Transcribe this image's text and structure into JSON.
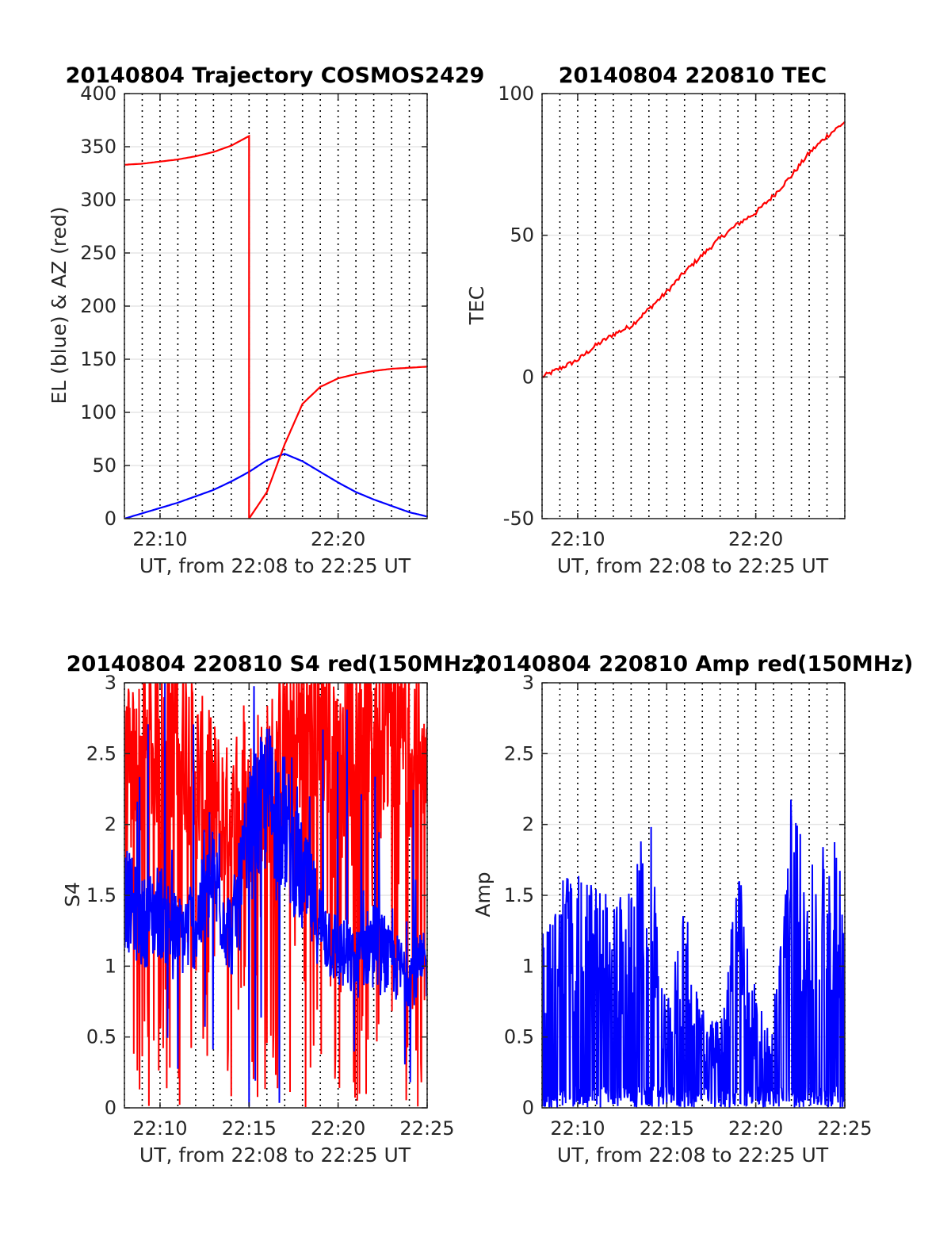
{
  "chart_data": [
    {
      "type": "line",
      "title": "20140804 Trajectory COSMOS2429",
      "xlabel": "UT, from 22:08 to 22:25 UT",
      "ylabel": "EL (blue) & AZ (red)",
      "xlim": [
        "22:08",
        "22:25"
      ],
      "xticks": [
        "22:10",
        "22:20"
      ],
      "ylim": [
        0,
        400
      ],
      "yticks": [
        "0",
        "50",
        "100",
        "150",
        "200",
        "250",
        "300",
        "350",
        "400"
      ],
      "grid": true,
      "series": [
        {
          "color": "#0000ff",
          "x": [
            "22:08",
            "22:09",
            "22:10",
            "22:11",
            "22:12",
            "22:13",
            "22:14",
            "22:15",
            "22:16",
            "22:17",
            "22:18",
            "22:19",
            "22:20",
            "22:21",
            "22:22",
            "22:23",
            "22:24",
            "22:25"
          ],
          "values": [
            0,
            5,
            10,
            15,
            21,
            27,
            35,
            44,
            55,
            61,
            54,
            44,
            34,
            25,
            18,
            12,
            6,
            2
          ]
        },
        {
          "color": "#ff0000",
          "x": [
            "22:08",
            "22:09",
            "22:10",
            "22:11",
            "22:12",
            "22:13",
            "22:14",
            "22:15",
            "22:15",
            "22:16",
            "22:17",
            "22:18",
            "22:19",
            "22:20",
            "22:21",
            "22:22",
            "22:23",
            "22:24",
            "22:25"
          ],
          "values": [
            333,
            334,
            336,
            338,
            341,
            345,
            351,
            360,
            0,
            25,
            70,
            108,
            124,
            132,
            136,
            139,
            141,
            142,
            143
          ]
        }
      ]
    },
    {
      "type": "line",
      "title": "20140804 220810 TEC",
      "xlabel": "UT, from 22:08 to 22:25 UT",
      "ylabel": "TEC",
      "xlim": [
        "22:08",
        "22:25"
      ],
      "xticks": [
        "22:10",
        "22:20"
      ],
      "ylim": [
        -50,
        100
      ],
      "yticks": [
        "-50",
        "0",
        "50",
        "100"
      ],
      "grid": true,
      "series": [
        {
          "color": "#ff0000",
          "x": [
            "22:08",
            "22:09",
            "22:10",
            "22:11",
            "22:12",
            "22:13",
            "22:14",
            "22:15",
            "22:16",
            "22:17",
            "22:18",
            "22:19",
            "22:20",
            "22:21",
            "22:22",
            "22:23",
            "22:24",
            "22:25"
          ],
          "values": [
            0,
            3,
            6,
            11,
            15,
            18,
            24,
            30,
            37,
            43,
            49,
            54,
            58,
            64,
            71,
            79,
            85,
            90
          ]
        }
      ]
    },
    {
      "type": "line",
      "title": "20140804 220810 S4 red(150MHz)",
      "xlabel": "UT, from 22:08 to 22:25 UT",
      "ylabel": "S4",
      "xlim": [
        "22:08",
        "22:25"
      ],
      "xticks": [
        "22:10",
        "22:15",
        "22:20",
        "22:25"
      ],
      "ylim": [
        0,
        3
      ],
      "yticks": [
        "0",
        "0.5",
        "1",
        "1.5",
        "2",
        "2.5",
        "3"
      ],
      "grid": true,
      "series": [
        {
          "color": "#ff0000",
          "x": [
            "22:08",
            "22:09",
            "22:10",
            "22:11",
            "22:12",
            "22:13",
            "22:14",
            "22:15",
            "22:16",
            "22:17",
            "22:18",
            "22:19",
            "22:20",
            "22:21",
            "22:22",
            "22:23",
            "22:24",
            "22:25"
          ],
          "values": [
            2.4,
            2.6,
            2.8,
            2.9,
            2.5,
            2.3,
            2.1,
            2.2,
            2.4,
            2.7,
            2.9,
            3.0,
            2.6,
            3.0,
            3.0,
            3.0,
            2.8,
            3.0
          ]
        },
        {
          "color": "#0000ff",
          "x": [
            "22:08",
            "22:09",
            "22:10",
            "22:11",
            "22:12",
            "22:13",
            "22:14",
            "22:15",
            "22:16",
            "22:17",
            "22:18",
            "22:19",
            "22:20",
            "22:21",
            "22:22",
            "22:23",
            "22:24",
            "22:25"
          ],
          "values": [
            1.5,
            1.3,
            1.4,
            1.2,
            1.3,
            1.6,
            1.2,
            1.9,
            2.2,
            2.0,
            1.6,
            1.3,
            1.1,
            1.0,
            1.2,
            1.0,
            0.95,
            1.0
          ]
        }
      ]
    },
    {
      "type": "line",
      "title": "20140804 220810 Amp red(150MHz)",
      "xlabel": "UT, from 22:08 to 22:25 UT",
      "ylabel": "Amp",
      "xlim": [
        "22:08",
        "22:25"
      ],
      "xticks": [
        "22:10",
        "22:15",
        "22:20",
        "22:25"
      ],
      "ylim": [
        0,
        3
      ],
      "yticks": [
        "0",
        "0.5",
        "1",
        "1.5",
        "2",
        "2.5",
        "3"
      ],
      "grid": true,
      "series": [
        {
          "color": "#0000ff",
          "x": [
            "22:08",
            "22:09",
            "22:10",
            "22:11",
            "22:12",
            "22:13",
            "22:14",
            "22:15",
            "22:16",
            "22:17",
            "22:18",
            "22:19",
            "22:20",
            "22:21",
            "22:22",
            "22:23",
            "22:24",
            "22:25"
          ],
          "values": [
            1.3,
            1.7,
            1.65,
            1.6,
            1.5,
            1.6,
            2.2,
            0.7,
            1.5,
            0.7,
            0.6,
            1.8,
            0.8,
            0.8,
            2.25,
            1.7,
            2.05,
            1.7
          ]
        }
      ]
    }
  ]
}
